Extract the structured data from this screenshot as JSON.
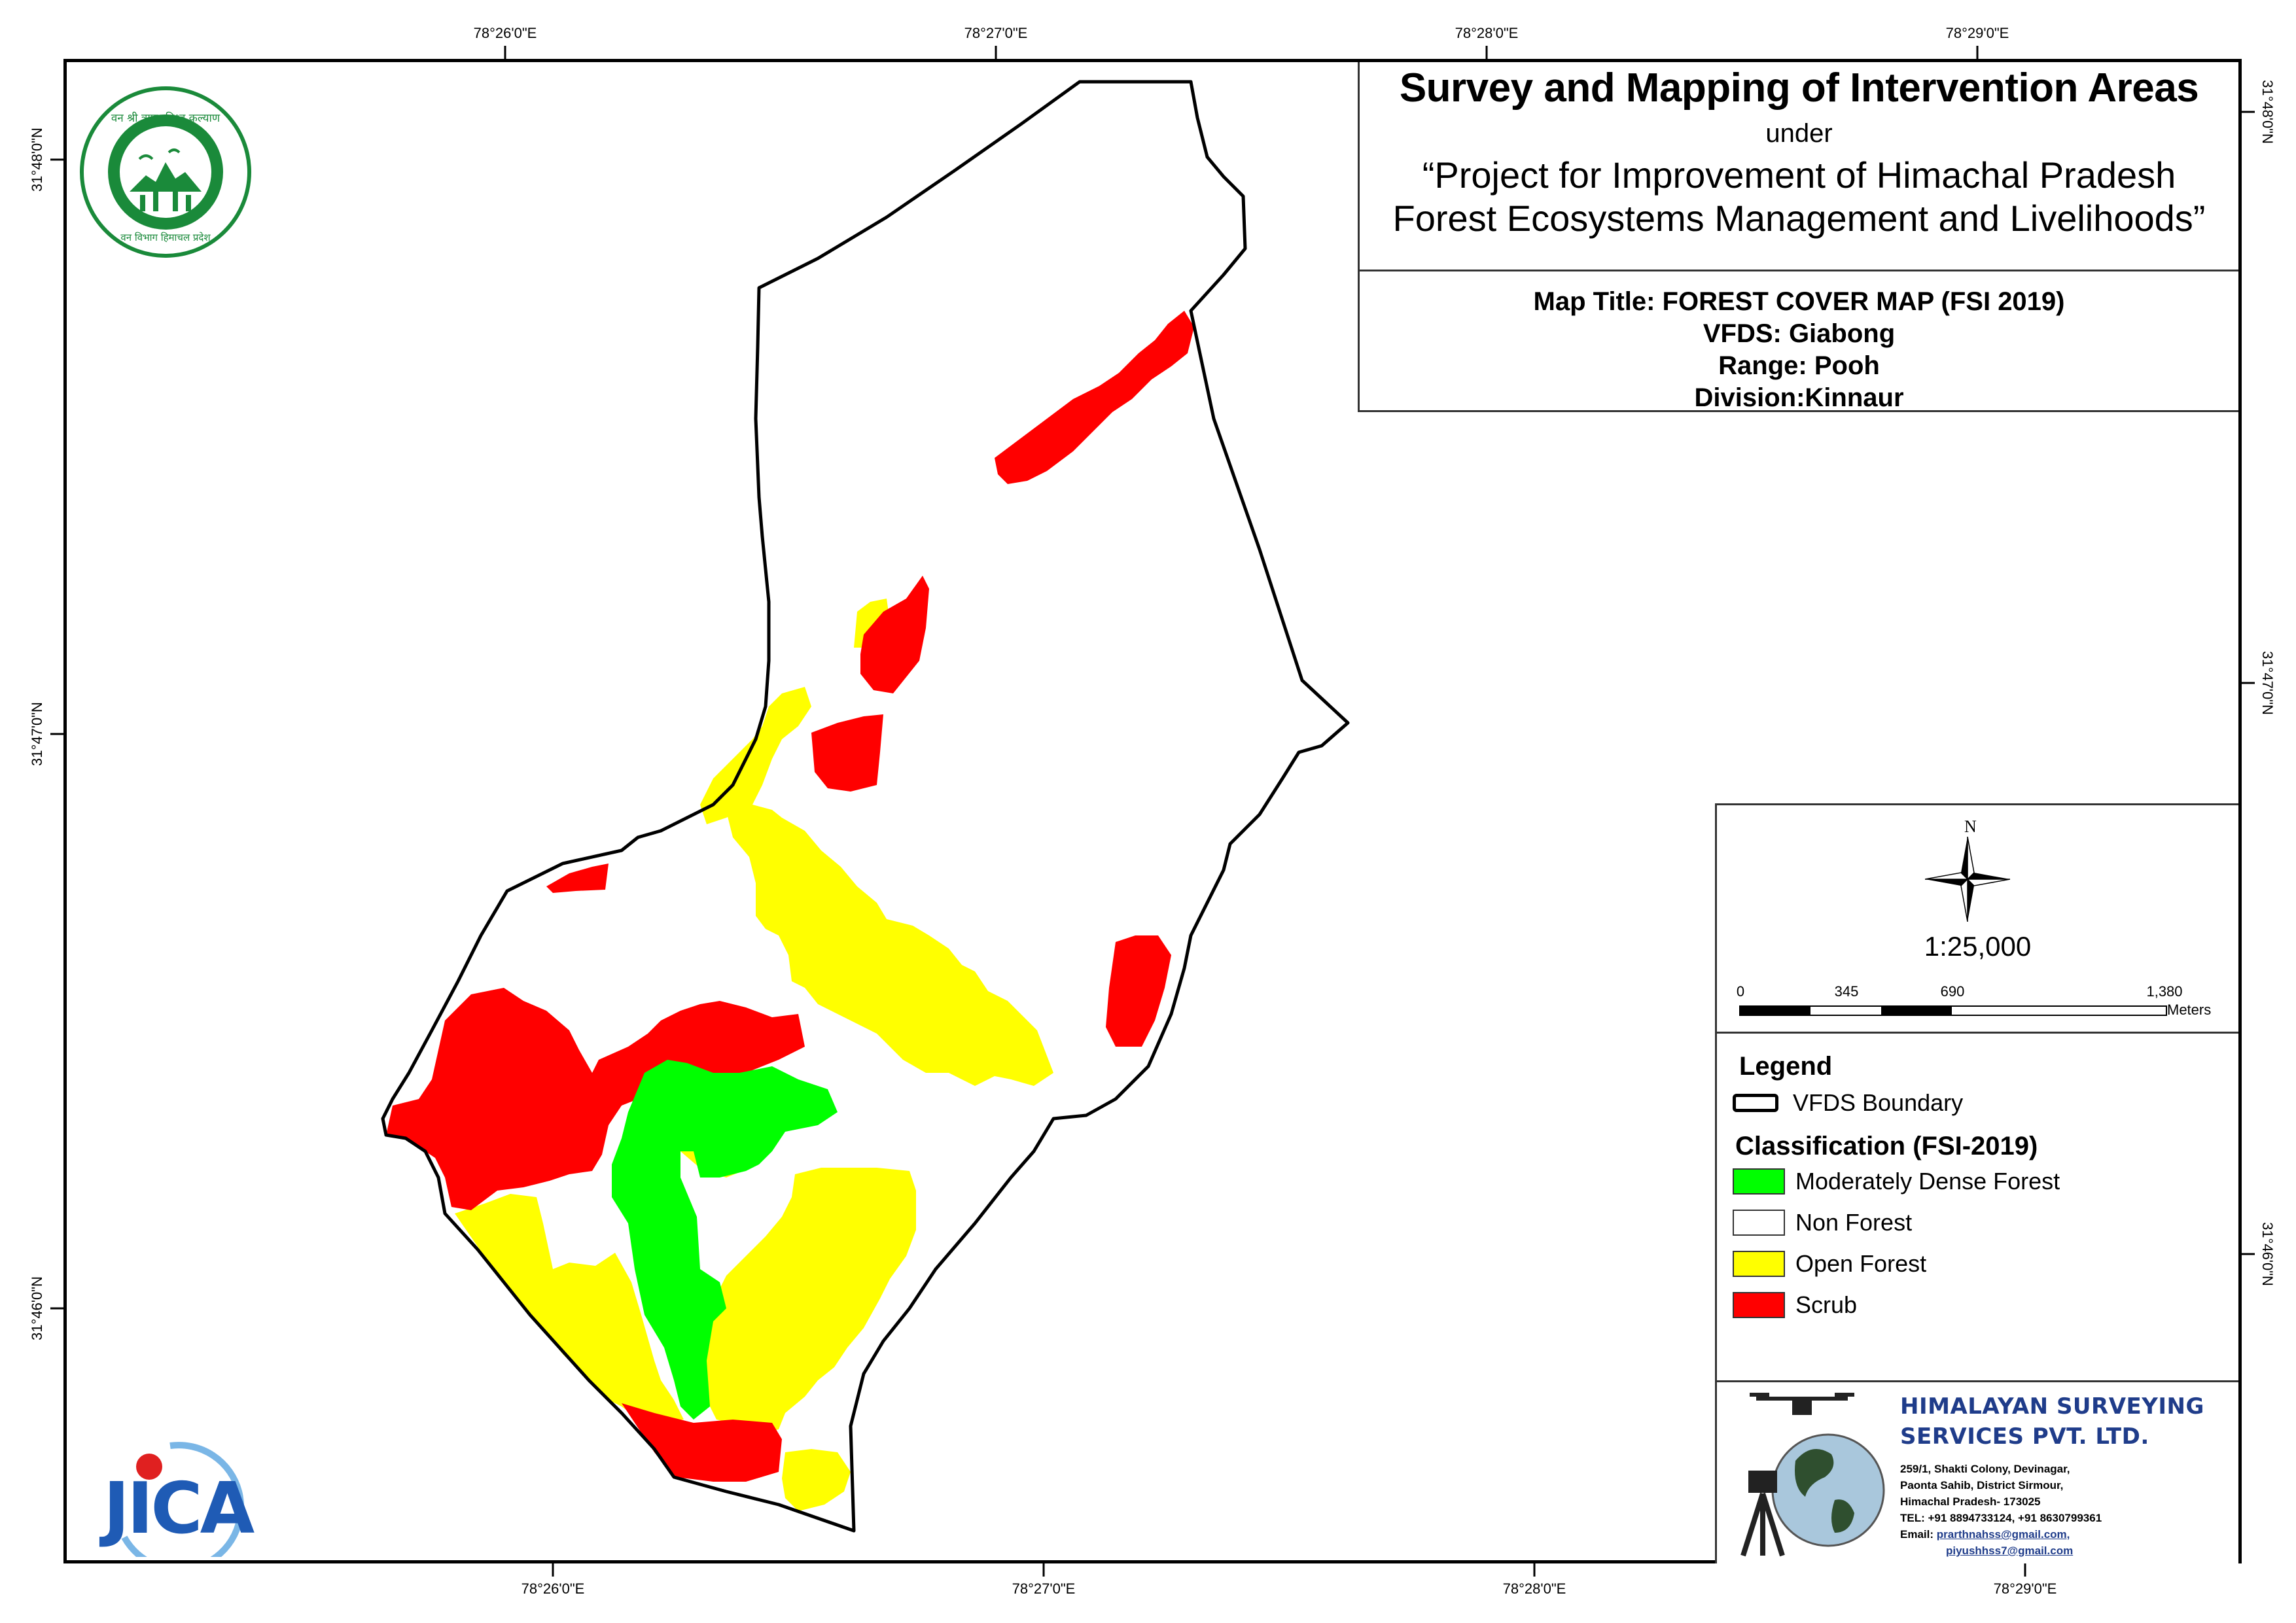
{
  "map": {
    "title_main": "Survey and Mapping of Intervention Areas",
    "title_under": "under",
    "title_project_line1": "“Project for Improvement of Himachal Pradesh",
    "title_project_line2": "Forest Ecosystems Management and Livelihoods”",
    "map_title": "Map Title: FOREST COVER MAP (FSI 2019)",
    "vfds": "VFDS: Giabong",
    "range": "Range: Pooh",
    "division": "Division:Kinnaur"
  },
  "graticule": {
    "top": [
      "78°26'0\"E",
      "78°27'0\"E",
      "78°28'0\"E",
      "78°29'0\"E"
    ],
    "bottom": [
      "78°26'0\"E",
      "78°27'0\"E",
      "78°28'0\"E",
      "78°29'0\"E"
    ],
    "left": [
      "31°48'0\"N",
      "31°47'0\"N",
      "31°46'0\"N"
    ],
    "right": [
      "31°48'0\"N",
      "31°47'0\"N",
      "31°46'0\"N"
    ]
  },
  "scale": {
    "north": "N",
    "ratio": "1:25,000",
    "labels": [
      "0",
      "345",
      "690",
      "1,380"
    ],
    "unit": "Meters"
  },
  "legend": {
    "title": "Legend",
    "boundary_label": "VFDS Boundary",
    "classification_title": "Classification (FSI-2019)",
    "classes": [
      {
        "label": "Moderately Dense Forest",
        "color": "#00ff00"
      },
      {
        "label": "Non Forest",
        "color": "#ffffff"
      },
      {
        "label": "Open Forest",
        "color": "#ffff00"
      },
      {
        "label": "Scrub",
        "color": "#ff0000"
      }
    ]
  },
  "logos": {
    "hp_forest_text_top": "वन श्री त्राण, विश्व कल्याण",
    "hp_forest_text_bottom": "वन विभाग हिमाचल प्रदेश",
    "jica": "JICA"
  },
  "company": {
    "name_line1": "HIMALAYAN SURVEYING",
    "name_line2": "SERVICES PVT. LTD.",
    "addr_line1": "259/1, Shakti Colony, Devinagar,",
    "addr_line2": "Paonta Sahib, District Sirmour,",
    "addr_line3": "Himachal Pradesh- 173025",
    "tel": "TEL: +91 8894733124, +91 8630799361",
    "email_label": "Email:",
    "email1": "prarthnahss@gmail.com,",
    "email2": "piyushhss7@gmail.com"
  },
  "colors": {
    "moderately_dense": "#00ff00",
    "open_forest": "#ffff00",
    "scrub": "#ff0000",
    "boundary": "#000000",
    "company_blue": "#1f3c8a",
    "hp_green": "#1a8a3a"
  }
}
